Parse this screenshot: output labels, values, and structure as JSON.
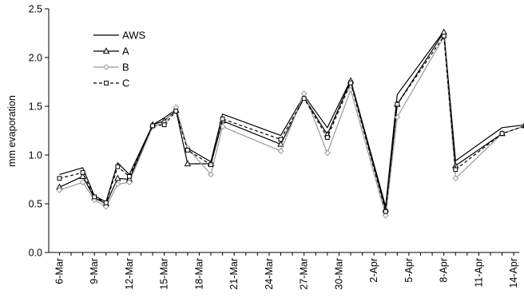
{
  "chart_data": {
    "type": "line",
    "title": "",
    "xlabel": "",
    "ylabel": "mm evaporation",
    "ylim": [
      0,
      2.5
    ],
    "yticks": [
      "0.0",
      "0.5",
      "1.0",
      "1.5",
      "2.0",
      "2.5"
    ],
    "xticks": [
      "6-Mar",
      "9-Mar",
      "12-Mar",
      "15-Mar",
      "18-Mar",
      "21-Mar",
      "24-Mar",
      "27-Mar",
      "30-Mar",
      "2-Apr",
      "5-Apr",
      "8-Apr",
      "11-Apr",
      "14-Apr"
    ],
    "x": [
      "6-Mar",
      "8-Mar",
      "9-Mar",
      "10-Mar",
      "11-Mar",
      "12-Mar",
      "14-Mar",
      "15-Mar",
      "16-Mar",
      "17-Mar",
      "19-Mar",
      "20-Mar",
      "25-Mar",
      "27-Mar",
      "29-Mar",
      "31-Mar",
      "3-Apr",
      "4-Apr",
      "8-Apr",
      "9-Apr",
      "13-Apr",
      "15-Apr"
    ],
    "grid": false,
    "legend_position": "top-left",
    "series": [
      {
        "name": "AWS",
        "color": "#000000",
        "dash": "",
        "marker": "none",
        "values": [
          0.8,
          0.87,
          0.58,
          0.52,
          0.92,
          0.8,
          1.31,
          1.38,
          1.47,
          1.07,
          0.93,
          1.42,
          1.2,
          1.61,
          1.28,
          1.77,
          0.47,
          1.62,
          2.27,
          0.94,
          1.28,
          1.31
        ]
      },
      {
        "name": "A",
        "color": "#000000",
        "dash": "",
        "marker": "triangle",
        "values": [
          0.67,
          0.78,
          0.56,
          0.5,
          0.76,
          0.75,
          1.31,
          1.35,
          1.46,
          0.91,
          0.91,
          1.35,
          1.11,
          1.59,
          1.21,
          1.76,
          0.44,
          1.52,
          2.26,
          0.89,
          1.22,
          1.3
        ]
      },
      {
        "name": "B",
        "color": "#999999",
        "dash": "",
        "marker": "diamond",
        "values": [
          0.64,
          0.72,
          0.54,
          0.47,
          0.7,
          0.72,
          1.29,
          1.33,
          1.49,
          1.07,
          0.8,
          1.29,
          1.04,
          1.63,
          1.02,
          1.67,
          0.38,
          1.39,
          2.21,
          0.76,
          1.22,
          1.3
        ]
      },
      {
        "name": "C",
        "color": "#000000",
        "dash": "4,3",
        "marker": "square",
        "values": [
          0.76,
          0.82,
          0.57,
          0.51,
          0.88,
          0.78,
          1.3,
          1.31,
          1.45,
          1.05,
          0.9,
          1.37,
          1.16,
          1.58,
          1.18,
          1.74,
          0.42,
          1.52,
          2.22,
          0.85,
          1.22,
          1.3
        ]
      }
    ]
  }
}
